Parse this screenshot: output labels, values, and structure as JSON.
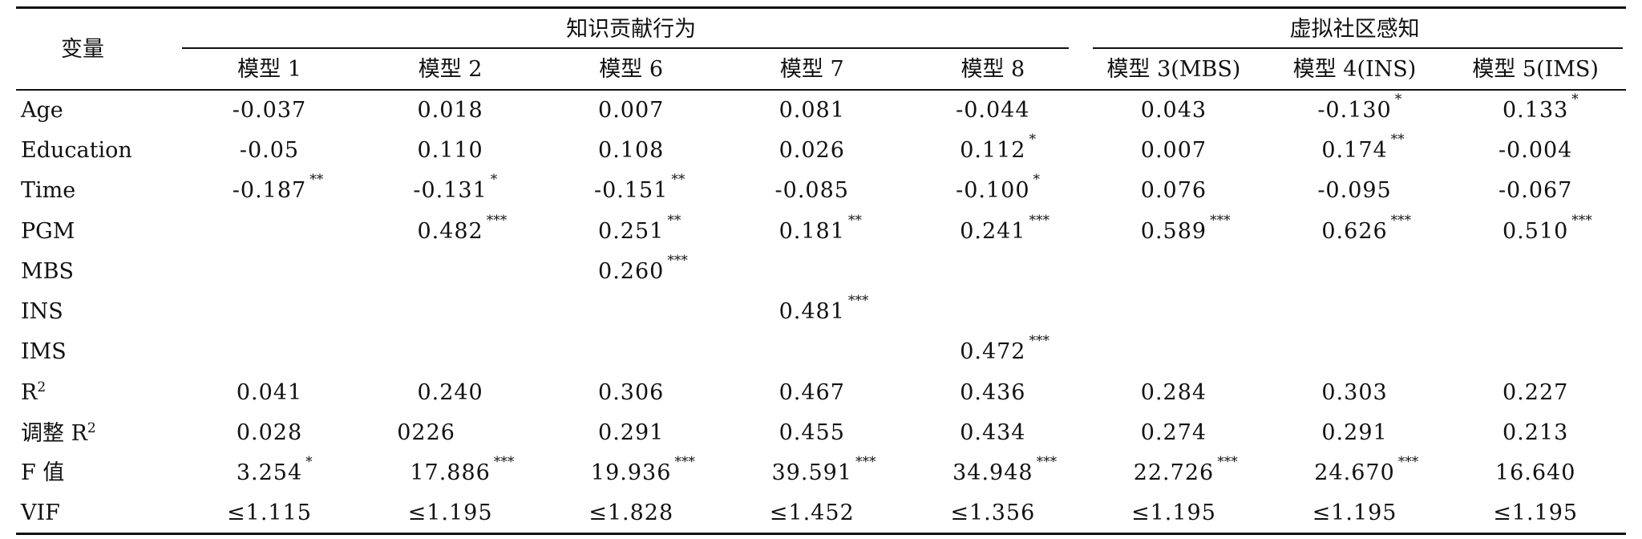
{
  "header": {
    "variable": "变量",
    "group_knowledge": "知识贡献行为",
    "group_virtual": "虚拟社区感知",
    "models": [
      "模型 1",
      "模型 2",
      "模型 6",
      "模型 7",
      "模型 8",
      "模型 3(MBS)",
      "模型 4(INS)",
      "模型 5(IMS)"
    ]
  },
  "rows": [
    {
      "label": "Age",
      "cells": [
        {
          "v": "-0.037",
          "s": ""
        },
        {
          "v": "0.018",
          "s": ""
        },
        {
          "v": "0.007",
          "s": ""
        },
        {
          "v": "0.081",
          "s": ""
        },
        {
          "v": "-0.044",
          "s": ""
        },
        {
          "v": "0.043",
          "s": ""
        },
        {
          "v": "-0.130",
          "s": "*"
        },
        {
          "v": "0.133",
          "s": "*"
        }
      ]
    },
    {
      "label": "Education",
      "cells": [
        {
          "v": "-0.05",
          "s": ""
        },
        {
          "v": "0.110",
          "s": ""
        },
        {
          "v": "0.108",
          "s": ""
        },
        {
          "v": "0.026",
          "s": ""
        },
        {
          "v": "0.112",
          "s": "*"
        },
        {
          "v": "0.007",
          "s": ""
        },
        {
          "v": "0.174",
          "s": "**"
        },
        {
          "v": "-0.004",
          "s": ""
        }
      ]
    },
    {
      "label": "Time",
      "cells": [
        {
          "v": "-0.187",
          "s": "**"
        },
        {
          "v": "-0.131",
          "s": "*"
        },
        {
          "v": "-0.151",
          "s": "**"
        },
        {
          "v": "-0.085",
          "s": ""
        },
        {
          "v": "-0.100",
          "s": "*"
        },
        {
          "v": "0.076",
          "s": ""
        },
        {
          "v": "-0.095",
          "s": ""
        },
        {
          "v": "-0.067",
          "s": ""
        }
      ]
    },
    {
      "label": "PGM",
      "cells": [
        {
          "v": "",
          "s": ""
        },
        {
          "v": "0.482",
          "s": "***"
        },
        {
          "v": "0.251",
          "s": "**"
        },
        {
          "v": "0.181",
          "s": "**"
        },
        {
          "v": "0.241",
          "s": "***"
        },
        {
          "v": "0.589",
          "s": "***"
        },
        {
          "v": "0.626",
          "s": "***"
        },
        {
          "v": "0.510",
          "s": "***"
        }
      ]
    },
    {
      "label": "MBS",
      "cells": [
        {
          "v": "",
          "s": ""
        },
        {
          "v": "",
          "s": ""
        },
        {
          "v": "0.260",
          "s": "***"
        },
        {
          "v": "",
          "s": ""
        },
        {
          "v": "",
          "s": ""
        },
        {
          "v": "",
          "s": ""
        },
        {
          "v": "",
          "s": ""
        },
        {
          "v": "",
          "s": ""
        }
      ]
    },
    {
      "label": "INS",
      "cells": [
        {
          "v": "",
          "s": ""
        },
        {
          "v": "",
          "s": ""
        },
        {
          "v": "",
          "s": ""
        },
        {
          "v": "0.481",
          "s": "***"
        },
        {
          "v": "",
          "s": ""
        },
        {
          "v": "",
          "s": ""
        },
        {
          "v": "",
          "s": ""
        },
        {
          "v": "",
          "s": ""
        }
      ]
    },
    {
      "label": "IMS",
      "cells": [
        {
          "v": "",
          "s": ""
        },
        {
          "v": "",
          "s": ""
        },
        {
          "v": "",
          "s": ""
        },
        {
          "v": "",
          "s": ""
        },
        {
          "v": "0.472",
          "s": "***"
        },
        {
          "v": "",
          "s": ""
        },
        {
          "v": "",
          "s": ""
        },
        {
          "v": "",
          "s": ""
        }
      ]
    },
    {
      "label": "R",
      "label_sup": "2",
      "cells": [
        {
          "v": "0.041",
          "s": ""
        },
        {
          "v": "0.240",
          "s": ""
        },
        {
          "v": "0.306",
          "s": ""
        },
        {
          "v": "0.467",
          "s": ""
        },
        {
          "v": "0.436",
          "s": ""
        },
        {
          "v": "0.284",
          "s": ""
        },
        {
          "v": "0.303",
          "s": ""
        },
        {
          "v": "0.227",
          "s": ""
        }
      ]
    },
    {
      "label": "调整 R",
      "label_sup": "2",
      "cells": [
        {
          "v": "0.028",
          "s": ""
        },
        {
          "v": "0226",
          "s": "",
          "shift": "l"
        },
        {
          "v": "0.291",
          "s": ""
        },
        {
          "v": "0.455",
          "s": ""
        },
        {
          "v": "0.434",
          "s": ""
        },
        {
          "v": "0.274",
          "s": ""
        },
        {
          "v": "0.291",
          "s": ""
        },
        {
          "v": "0.213",
          "s": ""
        }
      ]
    },
    {
      "label": "F 值",
      "cells": [
        {
          "v": "3.254",
          "s": "*"
        },
        {
          "v": "17.886",
          "s": "***"
        },
        {
          "v": "19.936",
          "s": "***"
        },
        {
          "v": "39.591",
          "s": "***"
        },
        {
          "v": "34.948",
          "s": "***"
        },
        {
          "v": "22.726",
          "s": "***"
        },
        {
          "v": "24.670",
          "s": "***"
        },
        {
          "v": "16.640",
          "s": ""
        }
      ]
    },
    {
      "label": "VIF",
      "cells": [
        {
          "v": "≤1.115",
          "s": ""
        },
        {
          "v": "≤1.195",
          "s": ""
        },
        {
          "v": "≤1.828",
          "s": ""
        },
        {
          "v": "≤1.452",
          "s": ""
        },
        {
          "v": "≤1.356",
          "s": ""
        },
        {
          "v": "≤1.195",
          "s": ""
        },
        {
          "v": "≤1.195",
          "s": ""
        },
        {
          "v": "≤1.195",
          "s": ""
        }
      ]
    }
  ]
}
